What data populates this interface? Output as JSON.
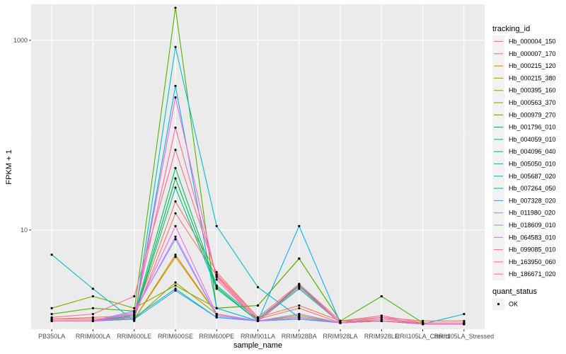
{
  "chart_data": {
    "type": "line",
    "xlabel": "sample_name",
    "ylabel": "FPKM + 1",
    "y_scale": "log10",
    "ylim": [
      0.9,
      2400
    ],
    "y_ticks": [
      {
        "value": 10,
        "label": "10"
      },
      {
        "value": 1000,
        "label": "1000"
      }
    ],
    "grid": true,
    "legend_position": "right",
    "categories": [
      "PB350LA",
      "RRIM600LA",
      "RRIM600LE",
      "RRIM600SE",
      "RRIM600PE",
      "RRIM901LA",
      "RRIM928BA",
      "RRIM928LA",
      "RRIM928LE",
      "RRII105LA_Control",
      "RRII105LA_Stressed"
    ],
    "color_legend": {
      "title": "tracking_id",
      "series": [
        {
          "name": "Hb_000004_150",
          "color": "#f8766d",
          "values": [
            1.15,
            1.15,
            1.2,
            15,
            3.3,
            1.15,
            1.5,
            1.05,
            1.15,
            1.05,
            1.05
          ]
        },
        {
          "name": "Hb_000007_170",
          "color": "#f37b59",
          "values": [
            1.15,
            1.2,
            1.25,
            20,
            3.6,
            1.2,
            1.6,
            1.1,
            1.2,
            1.1,
            1.1
          ]
        },
        {
          "name": "Hb_000215_120",
          "color": "#e18a00",
          "values": [
            1.1,
            1.1,
            1.15,
            5.5,
            1.3,
            1.1,
            1.3,
            1.05,
            1.1,
            1.02,
            1.02
          ]
        },
        {
          "name": "Hb_000215_380",
          "color": "#c09b00",
          "values": [
            1.1,
            1.1,
            1.15,
            5.2,
            1.3,
            1.1,
            1.25,
            1.05,
            1.1,
            1.02,
            1.02
          ]
        },
        {
          "name": "Hb_000395_160",
          "color": "#9fa800",
          "values": [
            1.1,
            1.1,
            1.15,
            2.8,
            1.3,
            1.1,
            1.2,
            1.05,
            1.1,
            1.02,
            1.02
          ]
        },
        {
          "name": "Hb_000563_370",
          "color": "#7cae00",
          "values": [
            1.5,
            2.0,
            1.5,
            2.6,
            1.5,
            1.6,
            5.0,
            1.1,
            1.1,
            1.05,
            1.05
          ]
        },
        {
          "name": "Hb_000979_270",
          "color": "#4fb400",
          "values": [
            1.3,
            1.5,
            1.4,
            2200,
            1.5,
            1.6,
            5.0,
            1.1,
            2.0,
            1.05,
            1.05
          ]
        },
        {
          "name": "Hb_001796_010",
          "color": "#00ba38",
          "values": [
            1.1,
            1.1,
            1.2,
            35,
            2.5,
            1.1,
            2.6,
            1.05,
            1.1,
            1.02,
            1.02
          ]
        },
        {
          "name": "Hb_004059_010",
          "color": "#00be70",
          "values": [
            1.1,
            1.1,
            1.25,
            45,
            2.6,
            1.15,
            2.6,
            1.05,
            1.1,
            1.02,
            1.02
          ]
        },
        {
          "name": "Hb_004096_040",
          "color": "#00c094",
          "values": [
            1.1,
            1.1,
            1.2,
            28,
            2.4,
            1.1,
            2.4,
            1.05,
            1.1,
            1.02,
            1.02
          ]
        },
        {
          "name": "Hb_005050_010",
          "color": "#00c0b2",
          "values": [
            1.1,
            1.1,
            1.2,
            2.4,
            1.2,
            1.1,
            1.15,
            1.05,
            1.1,
            1.02,
            1.02
          ]
        },
        {
          "name": "Hb_005687_020",
          "color": "#00bdd0",
          "values": [
            5.5,
            2.4,
            1.1,
            850,
            11,
            2.5,
            1.2,
            1.05,
            1.1,
            1.02,
            1.3
          ]
        },
        {
          "name": "Hb_007264_050",
          "color": "#00b5ee",
          "values": [
            1.1,
            1.1,
            1.15,
            330,
            1.5,
            1.1,
            11,
            1.05,
            1.1,
            1.02,
            1.02
          ]
        },
        {
          "name": "Hb_007328_020",
          "color": "#3aa1ff",
          "values": [
            1.1,
            1.1,
            1.15,
            2.3,
            1.2,
            1.1,
            1.15,
            1.05,
            1.1,
            1.02,
            1.02
          ]
        },
        {
          "name": "Hb_011980_020",
          "color": "#8b93ff",
          "values": [
            1.1,
            1.1,
            1.4,
            8.0,
            1.25,
            1.1,
            1.3,
            1.05,
            1.1,
            1.02,
            1.02
          ]
        },
        {
          "name": "Hb_018609_010",
          "color": "#b983ff",
          "values": [
            1.1,
            1.1,
            1.35,
            8.5,
            1.25,
            1.1,
            1.2,
            1.05,
            1.1,
            1.02,
            1.02
          ]
        },
        {
          "name": "Hb_064583_010",
          "color": "#e76bf3",
          "values": [
            1.1,
            1.1,
            1.3,
            11,
            1.3,
            1.1,
            1.2,
            1.05,
            1.2,
            1.02,
            1.02
          ]
        },
        {
          "name": "Hb_099085_010",
          "color": "#fd61d1",
          "values": [
            1.1,
            1.1,
            1.2,
            250,
            3.0,
            1.1,
            2.5,
            1.05,
            1.1,
            1.02,
            1.02
          ]
        },
        {
          "name": "Hb_163950_060",
          "color": "#ff67a4",
          "values": [
            1.1,
            1.1,
            1.3,
            120,
            3.2,
            1.1,
            2.7,
            1.05,
            1.1,
            1.02,
            1.02
          ]
        },
        {
          "name": "Hb_186671_020",
          "color": "#ff6c91",
          "values": [
            1.2,
            1.3,
            2.0,
            70,
            3.4,
            1.2,
            2.7,
            1.1,
            1.25,
            1.05,
            1.05
          ]
        }
      ]
    },
    "shape_legend": {
      "title": "quant_status",
      "entries": [
        {
          "label": "OK",
          "shape": "point"
        }
      ]
    }
  }
}
